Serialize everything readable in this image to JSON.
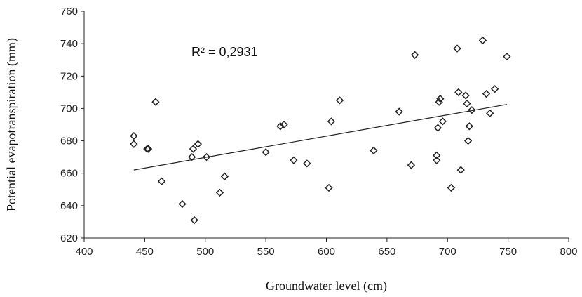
{
  "chart_data": {
    "type": "scatter",
    "title": "",
    "xlabel": "Groundwater level (cm)",
    "ylabel": "Potential evapotranspiration (mm)",
    "xlim": [
      400,
      800
    ],
    "ylim": [
      620,
      760
    ],
    "xticks": [
      400,
      450,
      500,
      550,
      600,
      650,
      700,
      750,
      800
    ],
    "yticks": [
      620,
      640,
      660,
      680,
      700,
      720,
      740,
      760
    ],
    "grid": false,
    "legend": "none",
    "marker": "diamond-open",
    "marker_color": "#222222",
    "points": [
      {
        "x": 441,
        "y": 683
      },
      {
        "x": 441,
        "y": 678
      },
      {
        "x": 452,
        "y": 675
      },
      {
        "x": 453,
        "y": 675
      },
      {
        "x": 459,
        "y": 704
      },
      {
        "x": 464,
        "y": 655
      },
      {
        "x": 481,
        "y": 641
      },
      {
        "x": 489,
        "y": 670
      },
      {
        "x": 490,
        "y": 675
      },
      {
        "x": 491,
        "y": 631
      },
      {
        "x": 494,
        "y": 678
      },
      {
        "x": 501,
        "y": 670
      },
      {
        "x": 512,
        "y": 648
      },
      {
        "x": 516,
        "y": 658
      },
      {
        "x": 550,
        "y": 673
      },
      {
        "x": 562,
        "y": 689
      },
      {
        "x": 565,
        "y": 690
      },
      {
        "x": 573,
        "y": 668
      },
      {
        "x": 584,
        "y": 666
      },
      {
        "x": 602,
        "y": 651
      },
      {
        "x": 604,
        "y": 692
      },
      {
        "x": 611,
        "y": 705
      },
      {
        "x": 639,
        "y": 674
      },
      {
        "x": 660,
        "y": 698
      },
      {
        "x": 670,
        "y": 665
      },
      {
        "x": 673,
        "y": 733
      },
      {
        "x": 691,
        "y": 671
      },
      {
        "x": 691,
        "y": 668
      },
      {
        "x": 692,
        "y": 688
      },
      {
        "x": 693,
        "y": 704
      },
      {
        "x": 694,
        "y": 706
      },
      {
        "x": 696,
        "y": 692
      },
      {
        "x": 703,
        "y": 651
      },
      {
        "x": 708,
        "y": 737
      },
      {
        "x": 709,
        "y": 710
      },
      {
        "x": 711,
        "y": 662
      },
      {
        "x": 715,
        "y": 708
      },
      {
        "x": 716,
        "y": 703
      },
      {
        "x": 717,
        "y": 680
      },
      {
        "x": 718,
        "y": 689
      },
      {
        "x": 720,
        "y": 699
      },
      {
        "x": 729,
        "y": 742
      },
      {
        "x": 732,
        "y": 709
      },
      {
        "x": 735,
        "y": 697
      },
      {
        "x": 739,
        "y": 712
      },
      {
        "x": 749,
        "y": 732
      }
    ],
    "trendline": {
      "x": [
        441,
        749
      ],
      "y": [
        662,
        702.5
      ]
    },
    "annotations": [
      {
        "text": "R² = 0,2931"
      }
    ]
  }
}
